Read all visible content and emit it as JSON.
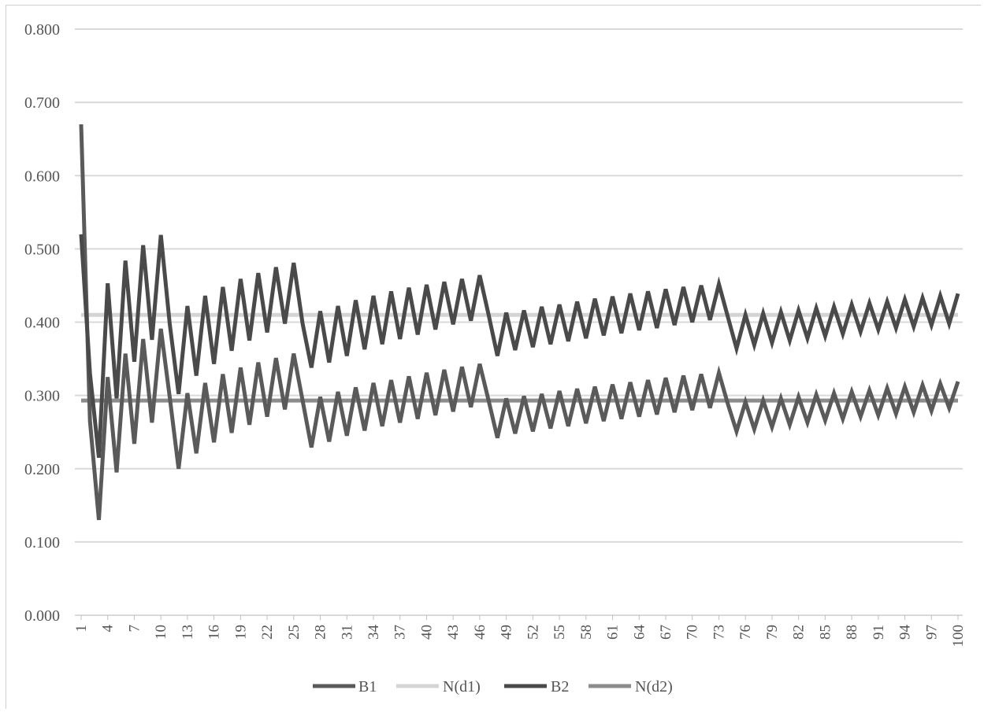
{
  "chart_data": {
    "type": "line",
    "title": "",
    "xlabel": "",
    "ylabel": "",
    "ylim": [
      0,
      0.8
    ],
    "y_ticks": [
      "0.000",
      "0.100",
      "0.200",
      "0.300",
      "0.400",
      "0.500",
      "0.600",
      "0.700",
      "0.800"
    ],
    "x_range": [
      1,
      100
    ],
    "x_tick_labels": [
      "1",
      "4",
      "7",
      "10",
      "13",
      "16",
      "19",
      "22",
      "25",
      "28",
      "31",
      "34",
      "37",
      "40",
      "43",
      "46",
      "49",
      "52",
      "55",
      "58",
      "61",
      "64",
      "67",
      "70",
      "73",
      "76",
      "79",
      "82",
      "85",
      "88",
      "91",
      "94",
      "97",
      "100"
    ],
    "grid": "horizontal",
    "legend_position": "bottom",
    "series": [
      {
        "name": "B1",
        "color": "#5a5a5a",
        "values": [
          0.67,
          0.265,
          0.13,
          0.325,
          0.195,
          0.357,
          0.234,
          0.377,
          0.263,
          0.391,
          0.298,
          0.2,
          0.303,
          0.221,
          0.317,
          0.236,
          0.329,
          0.249,
          0.338,
          0.26,
          0.345,
          0.271,
          0.351,
          0.281,
          0.357,
          0.293,
          0.229,
          0.298,
          0.237,
          0.305,
          0.245,
          0.311,
          0.252,
          0.317,
          0.258,
          0.321,
          0.263,
          0.326,
          0.268,
          0.331,
          0.273,
          0.335,
          0.278,
          0.339,
          0.284,
          0.343,
          0.293,
          0.242,
          0.296,
          0.248,
          0.299,
          0.251,
          0.302,
          0.255,
          0.306,
          0.258,
          0.309,
          0.262,
          0.312,
          0.265,
          0.315,
          0.268,
          0.318,
          0.271,
          0.321,
          0.274,
          0.324,
          0.277,
          0.327,
          0.28,
          0.329,
          0.283,
          0.331,
          0.289,
          0.251,
          0.291,
          0.254,
          0.293,
          0.257,
          0.296,
          0.26,
          0.298,
          0.263,
          0.301,
          0.266,
          0.303,
          0.268,
          0.305,
          0.271,
          0.307,
          0.273,
          0.31,
          0.275,
          0.312,
          0.277,
          0.314,
          0.279,
          0.316,
          0.283,
          0.319
        ]
      },
      {
        "name": "N(d1)",
        "color": "#d4d4d4",
        "values": [
          0.41,
          0.41
        ]
      },
      {
        "name": "B2",
        "color": "#4a4a4a",
        "values": [
          0.52,
          0.33,
          0.215,
          0.453,
          0.296,
          0.484,
          0.346,
          0.505,
          0.376,
          0.519,
          0.398,
          0.302,
          0.422,
          0.327,
          0.436,
          0.343,
          0.448,
          0.361,
          0.459,
          0.375,
          0.467,
          0.386,
          0.475,
          0.398,
          0.481,
          0.398,
          0.338,
          0.415,
          0.345,
          0.422,
          0.354,
          0.43,
          0.363,
          0.436,
          0.37,
          0.442,
          0.377,
          0.447,
          0.383,
          0.451,
          0.39,
          0.455,
          0.397,
          0.459,
          0.402,
          0.464,
          0.41,
          0.354,
          0.413,
          0.362,
          0.416,
          0.366,
          0.421,
          0.37,
          0.424,
          0.374,
          0.428,
          0.378,
          0.432,
          0.382,
          0.435,
          0.385,
          0.439,
          0.389,
          0.442,
          0.392,
          0.445,
          0.396,
          0.448,
          0.4,
          0.45,
          0.403,
          0.452,
          0.408,
          0.364,
          0.41,
          0.369,
          0.412,
          0.372,
          0.414,
          0.375,
          0.416,
          0.378,
          0.419,
          0.381,
          0.421,
          0.384,
          0.424,
          0.387,
          0.426,
          0.39,
          0.428,
          0.392,
          0.431,
          0.394,
          0.433,
          0.396,
          0.436,
          0.398,
          0.439
        ]
      },
      {
        "name": "N(d2)",
        "color": "#8c8c8c",
        "values": [
          0.293,
          0.293
        ]
      }
    ]
  }
}
